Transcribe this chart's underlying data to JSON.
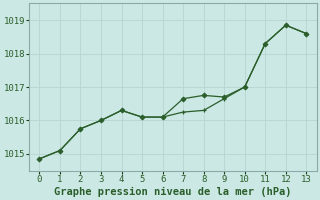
{
  "line1_x": [
    0,
    1,
    2,
    3,
    4,
    5,
    6,
    7,
    8,
    9,
    10,
    11,
    12,
    13
  ],
  "line1_y": [
    1014.85,
    1015.1,
    1015.75,
    1016.0,
    1016.3,
    1016.1,
    1016.1,
    1016.25,
    1016.3,
    1016.65,
    1017.0,
    1018.3,
    1018.85,
    1018.6
  ],
  "line2_x": [
    0,
    1,
    2,
    3,
    4,
    5,
    6,
    7,
    8,
    9,
    10,
    11,
    12,
    13
  ],
  "line2_y": [
    1014.85,
    1015.1,
    1015.75,
    1016.0,
    1016.3,
    1016.1,
    1016.1,
    1016.65,
    1016.75,
    1016.7,
    1017.0,
    1018.3,
    1018.85,
    1018.6
  ],
  "line_color": "#2a5e2a",
  "bg_color": "#cce8e4",
  "grid_color_major": "#b8d4d0",
  "grid_color_minor": "#d0e8e4",
  "xlabel": "Graphe pression niveau de la mer (hPa)",
  "ylim_min": 1014.5,
  "ylim_max": 1019.5,
  "xlim_min": -0.5,
  "xlim_max": 13.5,
  "yticks": [
    1015,
    1016,
    1017,
    1018,
    1019
  ],
  "xticks": [
    0,
    1,
    2,
    3,
    4,
    5,
    6,
    7,
    8,
    9,
    10,
    11,
    12,
    13
  ],
  "tick_fontsize": 6.5,
  "xlabel_fontsize": 7.5,
  "spine_color": "#8aaca8"
}
